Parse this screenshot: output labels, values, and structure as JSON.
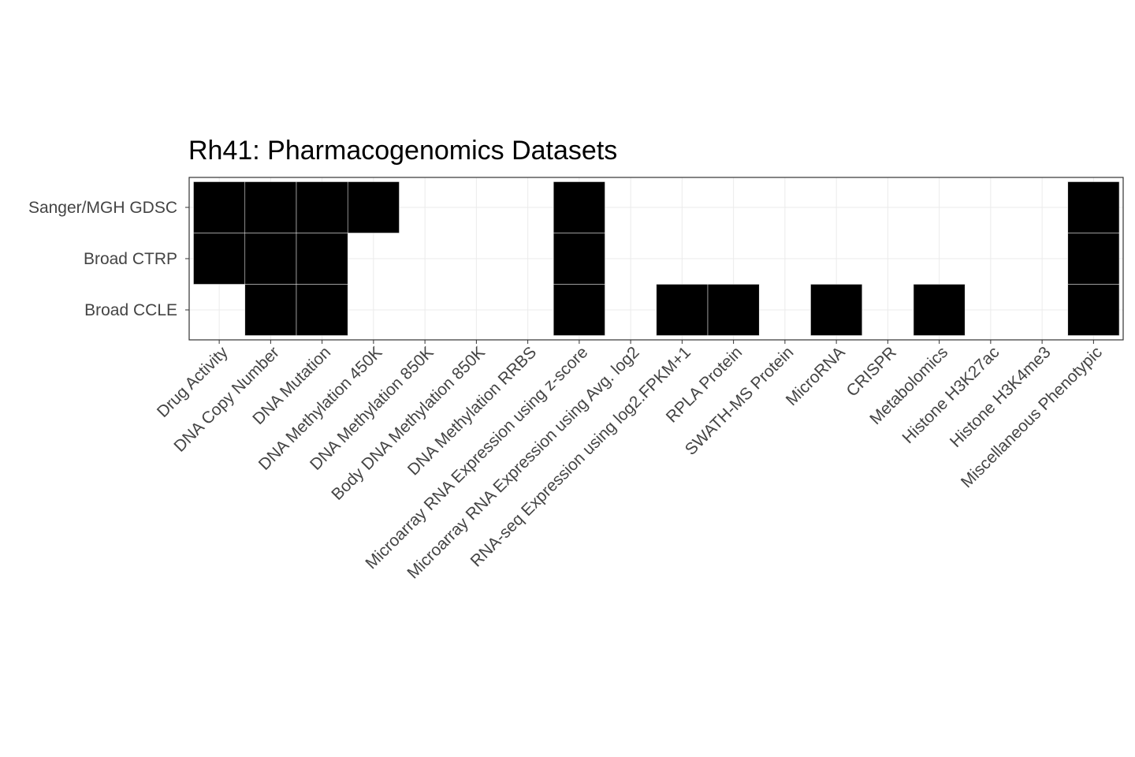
{
  "chart_data": {
    "type": "heatmap",
    "title": "Rh41: Pharmacogenomics Datasets",
    "xlabel": "",
    "ylabel": "",
    "grid": true,
    "legend": "none",
    "fill_color": "#000000",
    "x_categories": [
      "Drug Activity",
      "DNA Copy Number",
      "DNA Mutation",
      "DNA Methylation 450K",
      "DNA Methylation 850K",
      "Body DNA Methylation 850K",
      "DNA Methylation RRBS",
      "Microarray RNA Expression using z-score",
      "Microarray RNA Expression using Avg. log2",
      "RNA-seq Expression using log2.FPKM+1",
      "RPLA Protein",
      "SWATH-MS Protein",
      "MicroRNA",
      "CRISPR",
      "Metabolomics",
      "Histone H3K27ac",
      "Histone H3K4me3",
      "Miscellaneous Phenotypic"
    ],
    "y_categories": [
      "Sanger/MGH GDSC",
      "Broad CTRP",
      "Broad CCLE"
    ],
    "matrix": [
      [
        1,
        1,
        1,
        1,
        0,
        0,
        0,
        1,
        0,
        0,
        0,
        0,
        0,
        0,
        0,
        0,
        0,
        1
      ],
      [
        1,
        1,
        1,
        0,
        0,
        0,
        0,
        1,
        0,
        0,
        0,
        0,
        0,
        0,
        0,
        0,
        0,
        1
      ],
      [
        0,
        1,
        1,
        0,
        0,
        0,
        0,
        1,
        0,
        1,
        1,
        0,
        1,
        0,
        1,
        0,
        0,
        1
      ]
    ]
  }
}
